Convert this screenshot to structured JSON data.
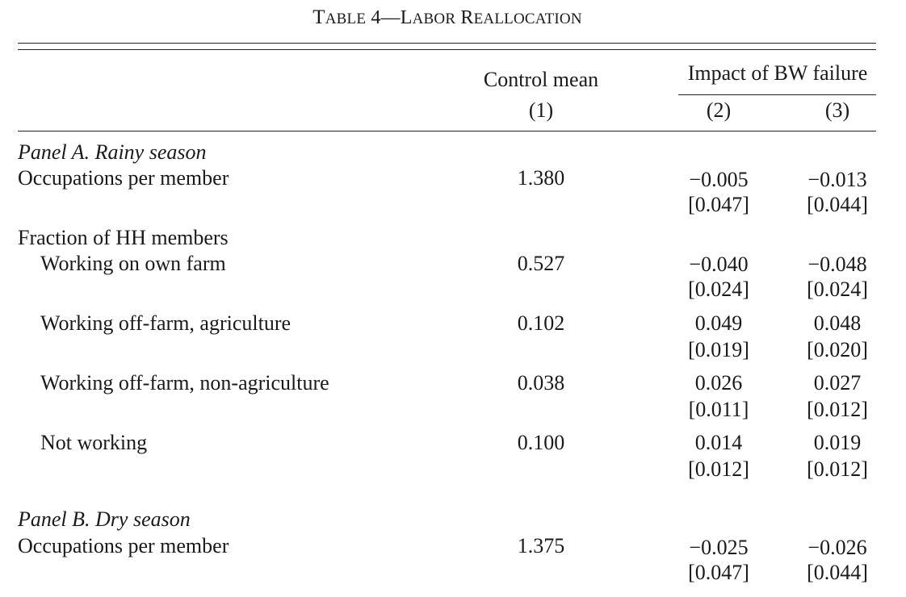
{
  "table": {
    "title_parts": [
      "T",
      "ABLE",
      " 4—L",
      "ABOR",
      " R",
      "EALLOCATION"
    ],
    "header": {
      "col1": "Control mean",
      "group": "Impact of BW failure",
      "num1": "(1)",
      "num2": "(2)",
      "num3": "(3)"
    },
    "panel_a": {
      "heading": "Panel A. Rainy season",
      "occupations": {
        "label": "Occupations per member",
        "mean": "1.380",
        "c2": "−0.005",
        "c2_se": "[0.047]",
        "c3": "−0.013",
        "c3_se": "[0.044]"
      },
      "fraction_label": "Fraction of HH members",
      "rows": [
        {
          "label": "Working on own farm",
          "mean": "0.527",
          "c2": "−0.040",
          "c2_se": "[0.024]",
          "c3": "−0.048",
          "c3_se": "[0.024]"
        },
        {
          "label": "Working off-farm, agriculture",
          "mean": "0.102",
          "c2": "0.049",
          "c2_se": "[0.019]",
          "c3": "0.048",
          "c3_se": "[0.020]"
        },
        {
          "label": "Working off-farm, non-agriculture",
          "mean": "0.038",
          "c2": "0.026",
          "c2_se": "[0.011]",
          "c3": "0.027",
          "c3_se": "[0.012]"
        },
        {
          "label": "Not working",
          "mean": "0.100",
          "c2": "0.014",
          "c2_se": "[0.012]",
          "c3": "0.019",
          "c3_se": "[0.012]"
        }
      ]
    },
    "panel_b": {
      "heading": "Panel B. Dry season",
      "occupations": {
        "label": "Occupations per member",
        "mean": "1.375",
        "c2": "−0.025",
        "c2_se": "[0.047]",
        "c3": "−0.026",
        "c3_se": "[0.044]"
      }
    }
  }
}
